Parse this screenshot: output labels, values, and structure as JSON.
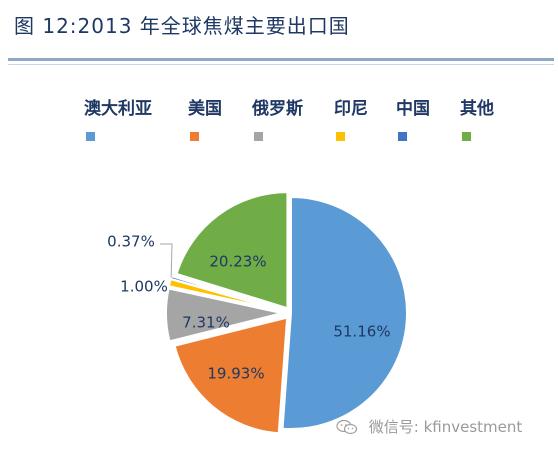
{
  "title": "图 12:2013 年全球焦煤主要出口国",
  "watermark": {
    "text": "微信号: kfinvestment",
    "icon": "wechat-icon"
  },
  "chart_data": {
    "type": "pie",
    "title": "图 12:2013 年全球焦煤主要出口国",
    "legend_position": "top",
    "slices": [
      {
        "name": "澳大利亚",
        "value": 51.16,
        "label": "51.16%",
        "color": "#5b9bd5"
      },
      {
        "name": "美国",
        "value": 19.93,
        "label": "19.93%",
        "color": "#ed7d31"
      },
      {
        "name": "俄罗斯",
        "value": 7.31,
        "label": "7.31%",
        "color": "#a5a5a5"
      },
      {
        "name": "印尼",
        "value": 1.0,
        "label": "1.00%",
        "color": "#ffc000"
      },
      {
        "name": "中国",
        "value": 0.37,
        "label": "0.37%",
        "color": "#4472c4"
      },
      {
        "name": "其他",
        "value": 20.23,
        "label": "20.23%",
        "color": "#70ad47"
      }
    ]
  }
}
